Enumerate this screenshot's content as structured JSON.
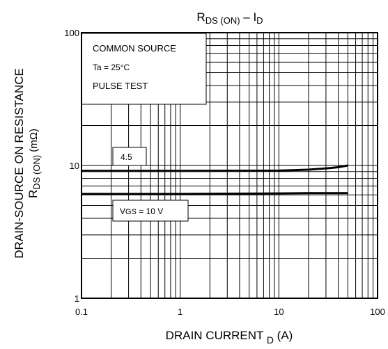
{
  "chart_data": {
    "type": "line",
    "title": {
      "main": "R",
      "main_sub": "DS (ON)",
      "sep": " – I",
      "end_sub": "D"
    },
    "xlabel": {
      "text": "DRAIN  CURRENT  ",
      "sub": "D",
      "unit": "   (A)"
    },
    "ylabel": {
      "line1": "DRAIN-SOURCE ON RESISTANCE",
      "line2_main": "R",
      "line2_sub": "DS (ON)",
      "line2_unit": "   (mΩ)"
    },
    "x_scale": "log",
    "y_scale": "log",
    "xlim": [
      0.1,
      100
    ],
    "ylim": [
      1,
      100
    ],
    "grid": true,
    "x_ticks": [
      {
        "value": 0.1,
        "label": "0.1"
      },
      {
        "value": 1,
        "label": "1"
      },
      {
        "value": 10,
        "label": "10"
      },
      {
        "value": 100,
        "label": "100"
      }
    ],
    "y_ticks": [
      {
        "value": 1,
        "label": "1"
      },
      {
        "value": 10,
        "label": "10"
      },
      {
        "value": 100,
        "label": "100"
      }
    ],
    "conditions": [
      "COMMON SOURCE",
      "Ta = 25°C",
      "PULSE TEST"
    ],
    "series": [
      {
        "name": "4.5",
        "x": [
          0.1,
          1,
          10,
          20,
          30,
          40,
          50
        ],
        "y": [
          9.1,
          9.1,
          9.15,
          9.3,
          9.5,
          9.7,
          10.0
        ]
      },
      {
        "name": "10 V",
        "x": [
          0.1,
          1,
          10,
          20,
          30,
          40,
          50
        ],
        "y": [
          6.1,
          6.1,
          6.15,
          6.2,
          6.2,
          6.2,
          6.2
        ]
      }
    ],
    "annotations": [
      {
        "text": "4.5",
        "series": 0
      },
      {
        "text_main": "V",
        "text_sub": "GS",
        "text_end": " = 10 V",
        "series": 1
      }
    ]
  }
}
